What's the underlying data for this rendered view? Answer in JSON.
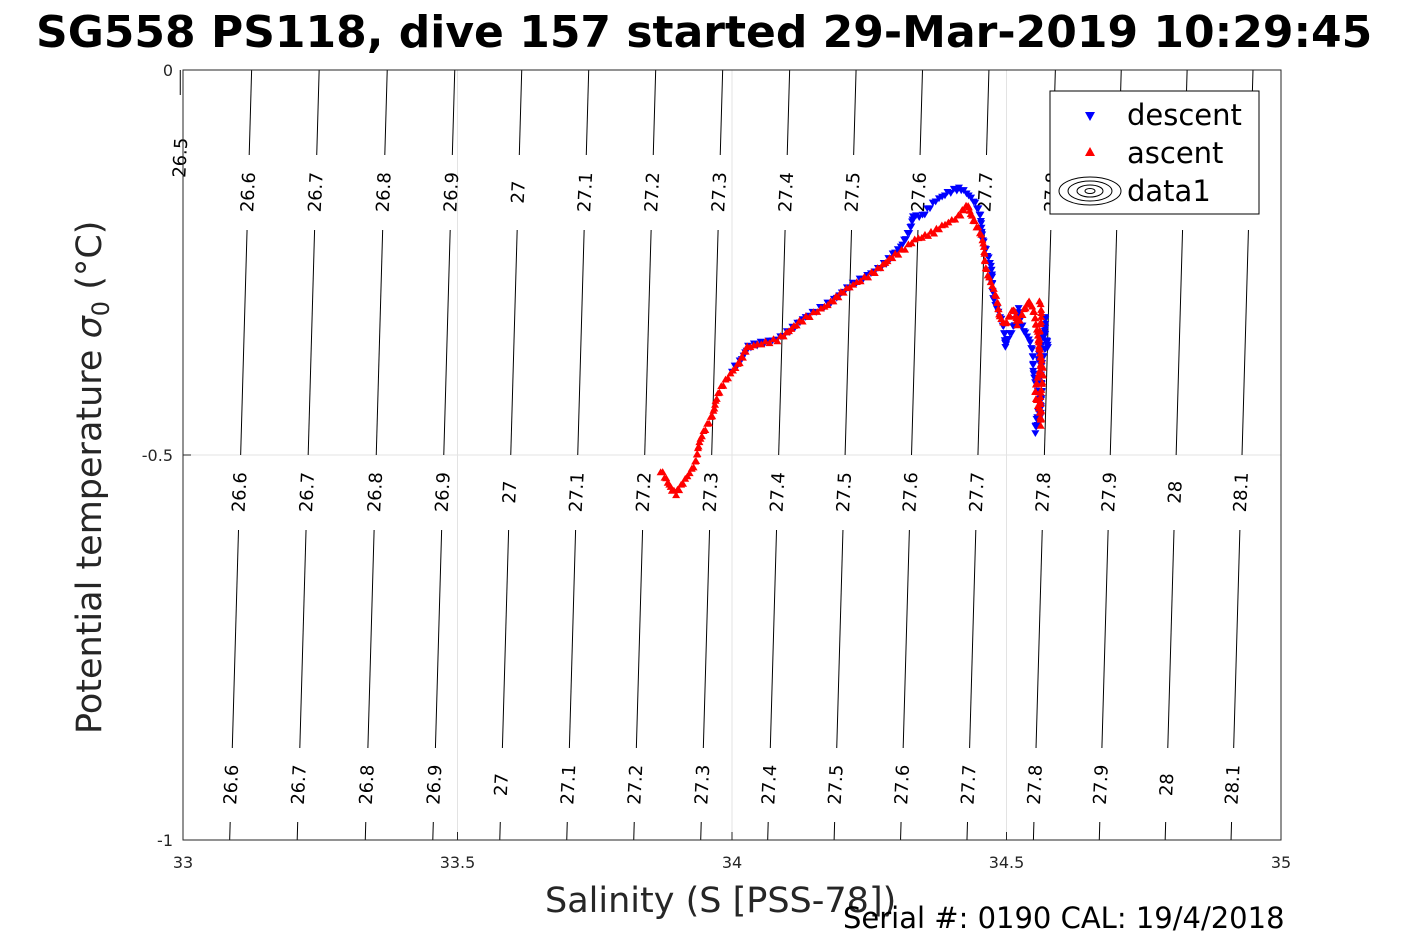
{
  "chart_data": {
    "type": "scatter",
    "title": "SG558 PS118, dive 157 started 29-Mar-2019 10:29:45",
    "xlabel": "Salinity (S [PSS-78])",
    "ylabel": "Potential temperature σ₀ (°C)",
    "ylabel_text": "Potential temperature ",
    "ylabel_sigma": "σ",
    "ylabel_sub": "0",
    "ylabel_unit": " (°C)",
    "xlim": [
      33,
      35
    ],
    "ylim": [
      -1,
      0
    ],
    "xticks": [
      "33",
      "33.5",
      "34",
      "34.5",
      "35"
    ],
    "yticks": [
      "0",
      "-0.5",
      "-1"
    ],
    "grid": true,
    "legend_position": "top-right",
    "legend": [
      {
        "label": "descent",
        "color": "#0000ff",
        "marker": "triangle-down"
      },
      {
        "label": "ascent",
        "color": "#ff0000",
        "marker": "triangle-up"
      },
      {
        "label": "data1",
        "color": "#000000",
        "marker": "contour"
      }
    ],
    "contours": [
      {
        "label": "26.5",
        "top": 32.995,
        "bottom": null
      },
      {
        "label": "26.6",
        "top": 33.125,
        "bottom": 33.085
      },
      {
        "label": "26.7",
        "top": 33.248,
        "bottom": 33.208
      },
      {
        "label": "26.8",
        "top": 33.372,
        "bottom": 33.332
      },
      {
        "label": "26.9",
        "top": 33.495,
        "bottom": 33.455
      },
      {
        "label": "27",
        "top": 33.617,
        "bottom": 33.577
      },
      {
        "label": "27.1",
        "top": 33.739,
        "bottom": 33.699
      },
      {
        "label": "27.2",
        "top": 33.861,
        "bottom": 33.821
      },
      {
        "label": "27.3",
        "top": 33.983,
        "bottom": 33.943
      },
      {
        "label": "27.4",
        "top": 34.105,
        "bottom": 34.065
      },
      {
        "label": "27.5",
        "top": 34.226,
        "bottom": 34.186
      },
      {
        "label": "27.6",
        "top": 34.347,
        "bottom": 34.307
      },
      {
        "label": "27.7",
        "top": 34.468,
        "bottom": 34.428
      },
      {
        "label": "27.8",
        "top": 34.589,
        "bottom": 34.549
      },
      {
        "label": "27.9",
        "top": 34.709,
        "bottom": 34.669
      },
      {
        "label": "28",
        "top": 34.829,
        "bottom": 34.789
      },
      {
        "label": "28.1",
        "top": 34.949,
        "bottom": 34.909
      }
    ],
    "series": [
      {
        "name": "descent",
        "color": "#0000ff",
        "marker": "triangle-down",
        "x": [
          34.0,
          34.03,
          34.08,
          34.12,
          34.16,
          34.2,
          34.24,
          34.28,
          34.31,
          34.32,
          34.33,
          34.35,
          34.37,
          34.39,
          34.41,
          34.42,
          34.43,
          34.44,
          34.45,
          34.46,
          34.47,
          34.48,
          34.49,
          34.5,
          34.51,
          34.52,
          34.53,
          34.54,
          34.55,
          34.56,
          34.56,
          34.555,
          34.56,
          34.565,
          34.57,
          34.575,
          34.57,
          34.56
        ],
        "y": [
          -0.39,
          -0.36,
          -0.35,
          -0.33,
          -0.31,
          -0.29,
          -0.27,
          -0.25,
          -0.23,
          -0.21,
          -0.19,
          -0.19,
          -0.17,
          -0.16,
          -0.155,
          -0.155,
          -0.16,
          -0.17,
          -0.19,
          -0.22,
          -0.26,
          -0.3,
          -0.33,
          -0.36,
          -0.34,
          -0.31,
          -0.33,
          -0.35,
          -0.39,
          -0.42,
          -0.45,
          -0.47,
          -0.43,
          -0.4,
          -0.35,
          -0.36,
          -0.32,
          -0.38
        ]
      },
      {
        "name": "ascent",
        "color": "#ff0000",
        "marker": "triangle-up",
        "x": [
          33.87,
          33.88,
          33.89,
          33.9,
          33.91,
          33.93,
          33.95,
          33.97,
          34.0,
          34.03,
          34.08,
          34.12,
          34.16,
          34.2,
          34.24,
          34.28,
          34.31,
          34.33,
          34.35,
          34.37,
          34.39,
          34.41,
          34.42,
          34.43,
          34.44,
          34.45,
          34.46,
          34.47,
          34.48,
          34.49,
          34.5,
          34.51,
          34.52,
          34.53,
          34.54,
          34.55,
          34.56,
          34.56,
          34.555,
          34.56,
          34.565,
          34.56
        ],
        "y": [
          -0.52,
          -0.535,
          -0.545,
          -0.55,
          -0.54,
          -0.51,
          -0.47,
          -0.43,
          -0.39,
          -0.36,
          -0.35,
          -0.33,
          -0.31,
          -0.29,
          -0.27,
          -0.25,
          -0.235,
          -0.22,
          -0.215,
          -0.21,
          -0.2,
          -0.19,
          -0.18,
          -0.175,
          -0.19,
          -0.21,
          -0.24,
          -0.27,
          -0.3,
          -0.32,
          -0.33,
          -0.31,
          -0.33,
          -0.32,
          -0.3,
          -0.32,
          -0.34,
          -0.38,
          -0.42,
          -0.46,
          -0.44,
          -0.3
        ]
      }
    ]
  },
  "footer": "Serial #: 0190  CAL: 19/4/2018"
}
